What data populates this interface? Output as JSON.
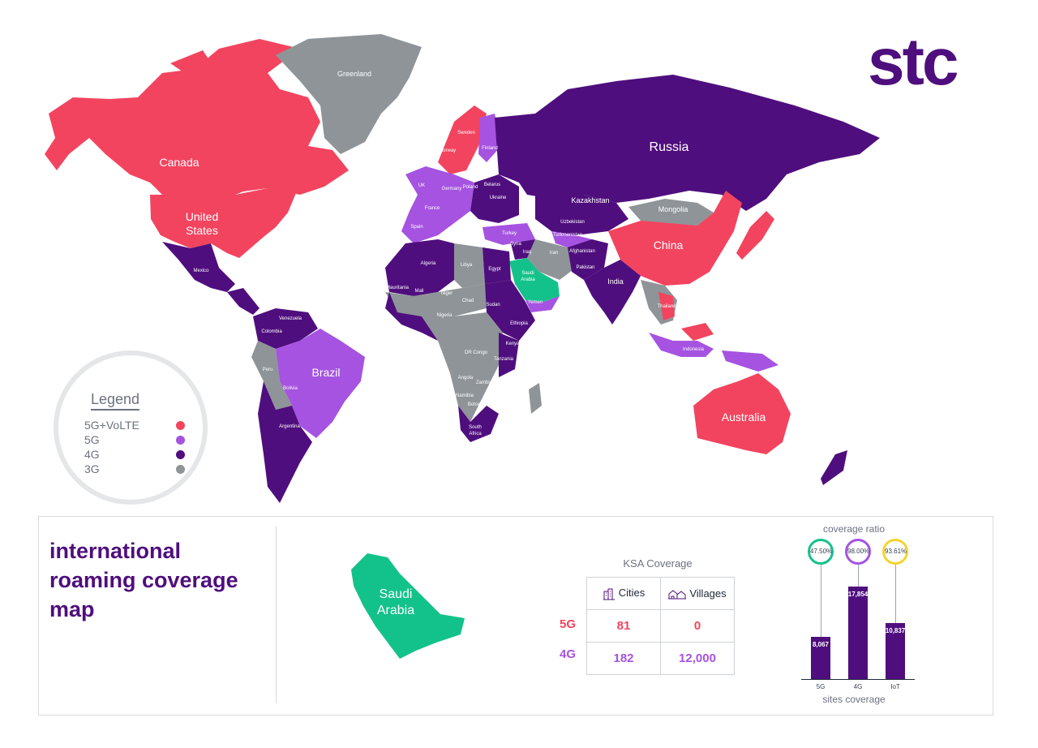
{
  "colors": {
    "5g_volte": "#f2445f",
    "5g": "#a553e0",
    "4g": "#4f0e7d",
    "3g": "#8e9498",
    "ksa": "#13c28a",
    "brand": "#4f0e7d",
    "iot": "#f5d430"
  },
  "logo": {
    "text": "stc"
  },
  "legend": {
    "title": "Legend",
    "items": [
      {
        "label": "5G+VoLTE",
        "color": "#f2445f"
      },
      {
        "label": "5G",
        "color": "#a553e0"
      },
      {
        "label": "4G",
        "color": "#4f0e7d"
      },
      {
        "label": "3G",
        "color": "#8e9498"
      }
    ]
  },
  "map_labels": {
    "greenland": "Greenland",
    "canada": "Canada",
    "united_states_1": "United",
    "united_states_2": "States",
    "mexico": "Mexico",
    "russia": "Russia",
    "kazakhstan": "Kazakhstan",
    "mongolia": "Mongolia",
    "china": "China",
    "india": "India",
    "iran": "Iran",
    "turkey": "Turkey",
    "ukraine": "Ukraine",
    "belarus": "Belarus",
    "poland": "Poland",
    "finland": "Finland",
    "sweden": "Sweden",
    "norway": "Norway",
    "uk": "UK",
    "france": "France",
    "spain": "Spain",
    "germany": "Germany",
    "algeria": "Algeria",
    "libya": "Libya",
    "egypt": "Egypt",
    "mali": "Mali",
    "mauritania": "Mauritania",
    "niger": "Niger",
    "chad": "Chad",
    "sudan": "Sudan",
    "nigeria": "Nigeria",
    "ethiopia": "Ethiopia",
    "kenya": "Kenya",
    "tanzania": "Tanzania",
    "dr_congo": "DR Congo",
    "angola": "Angola",
    "zambia": "Zambia",
    "namibia": "Namibia",
    "botswana": "Botswana",
    "south_africa_1": "South",
    "south_africa_2": "Africa",
    "iraq": "Iraq",
    "syria": "Syria",
    "yemen": "Yemen",
    "pakistan": "Pakistan",
    "afghanistan": "Afghanistan",
    "uzbekistan": "Uzbekistan",
    "turkmenistan": "Turkmenistan",
    "thailand": "Thailand",
    "indonesia": "Indonesia",
    "australia": "Australia",
    "brazil": "Brazil",
    "colombia": "Colombia",
    "venezuela": "Venezuela",
    "peru": "Peru",
    "bolivia": "Bolivia",
    "argentina": "Argentina",
    "saudi_1": "Saudi",
    "saudi_2": "Arabia"
  },
  "panel": {
    "title": "international roaming coverage map",
    "ksa_shape_label_1": "Saudi",
    "ksa_shape_label_2": "Arabia"
  },
  "ksa_coverage": {
    "title": "KSA Coverage",
    "headers": {
      "cities": "Cities",
      "villages": "Villages"
    },
    "rows": [
      {
        "label": "5G",
        "cities": "81",
        "villages": "0",
        "color": "#f2445f"
      },
      {
        "label": "4G",
        "cities": "182",
        "villages": "12,000",
        "color": "#a553e0"
      }
    ]
  },
  "chart_data": {
    "type": "bar",
    "title": "coverage ratio",
    "xlabel": "sites coverage",
    "categories": [
      "5G",
      "4G",
      "IoT"
    ],
    "values": [
      8067,
      17854,
      10837
    ],
    "value_labels": [
      "8,067",
      "17,854",
      "10,837"
    ],
    "ratios": [
      "47.50%",
      "98.00%",
      "93.61%"
    ],
    "ring_colors": [
      "#13c28a",
      "#a553e0",
      "#f5d430"
    ],
    "ylim": [
      0,
      20000
    ]
  }
}
